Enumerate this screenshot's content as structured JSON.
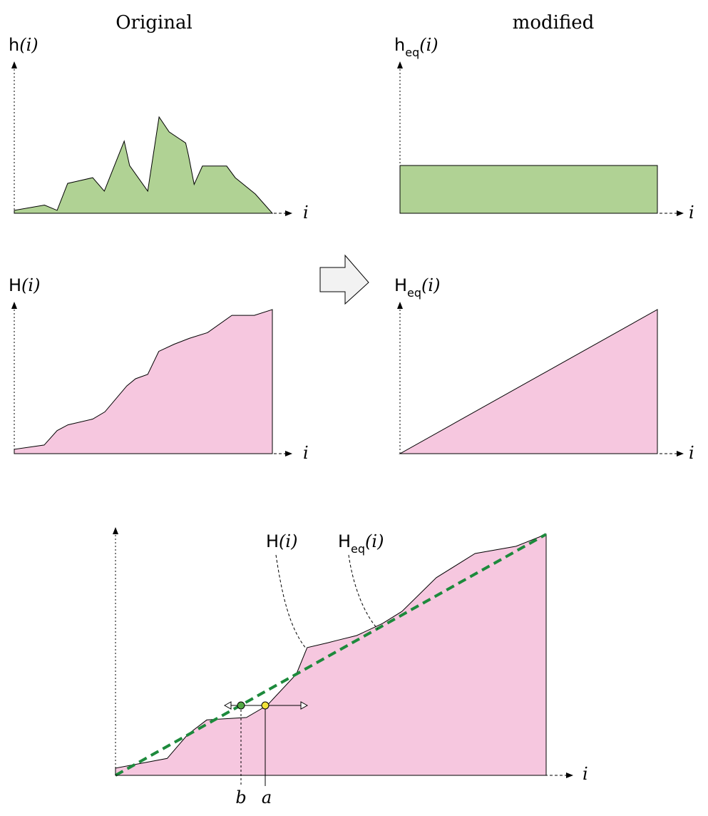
{
  "titles": {
    "left": "Original",
    "right": "modified"
  },
  "labels": {
    "h_letter": "h",
    "H_letter": "H",
    "eq_sub": "eq",
    "i": "i",
    "paren_i": "(i)",
    "a": "a",
    "b": "b"
  },
  "colors": {
    "green_fill": "#b0d294",
    "pink_fill": "#f6c7df",
    "dashed_line": "#1d8a3c",
    "point_b": "#55a845",
    "point_a": "#f2e33a",
    "arrow_fill": "#f2f2f2"
  },
  "chart_data": [
    {
      "type": "area",
      "panel": "h(i) original histogram",
      "x": [
        0,
        0.117,
        0.166,
        0.207,
        0.304,
        0.349,
        0.426,
        0.447,
        0.517,
        0.561,
        0.6,
        0.664,
        0.675,
        0.697,
        0.729,
        0.823,
        0.856,
        0.934,
        1.0
      ],
      "y": [
        0.03,
        0.085,
        0.03,
        0.31,
        0.37,
        0.23,
        0.75,
        0.495,
        0.23,
        1.0,
        0.845,
        0.73,
        0.6,
        0.3,
        0.49,
        0.49,
        0.37,
        0.2,
        0.0
      ]
    },
    {
      "type": "area",
      "panel": "h_eq(i) uniform histogram",
      "x": [
        0,
        1
      ],
      "y": [
        0.5,
        0.5
      ]
    },
    {
      "type": "area",
      "panel": "H(i) cumulative histogram",
      "x": [
        0,
        0.116,
        0.166,
        0.208,
        0.304,
        0.351,
        0.436,
        0.47,
        0.517,
        0.56,
        0.62,
        0.678,
        0.749,
        0.843,
        0.93,
        1.0
      ],
      "y": [
        0.03,
        0.06,
        0.16,
        0.2,
        0.24,
        0.29,
        0.47,
        0.52,
        0.55,
        0.71,
        0.76,
        0.8,
        0.84,
        0.96,
        0.96,
        1.0
      ]
    },
    {
      "type": "area",
      "panel": "H_eq(i) linear cumulative",
      "x": [
        0,
        1
      ],
      "y": [
        0,
        1
      ]
    },
    {
      "type": "area",
      "panel": "comparison of H(i) and H_eq(i)",
      "x": [
        0,
        0.12,
        0.168,
        0.212,
        0.304,
        0.352,
        0.42,
        0.445,
        0.493,
        0.515,
        0.56,
        0.62,
        0.665,
        0.745,
        0.835,
        0.93,
        1.0
      ],
      "y": [
        0.03,
        0.07,
        0.17,
        0.23,
        0.24,
        0.29,
        0.42,
        0.53,
        0.55,
        0.56,
        0.58,
        0.63,
        0.68,
        0.82,
        0.92,
        0.95,
        1.0
      ],
      "reference_line": {
        "x": [
          0,
          1
        ],
        "y": [
          0,
          1
        ]
      },
      "marked_points": [
        {
          "label": "b",
          "x": 0.293,
          "y": 0.293
        },
        {
          "label": "a",
          "x": 0.349,
          "y": 0.293
        }
      ]
    }
  ]
}
